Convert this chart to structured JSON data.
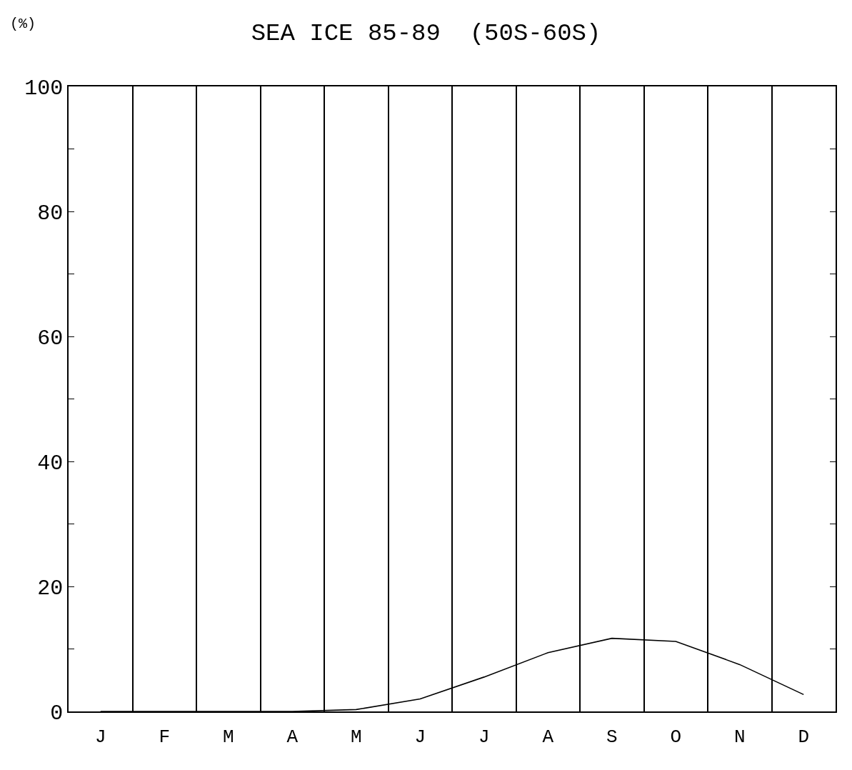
{
  "chart_data": {
    "type": "line",
    "title": "SEA ICE 85-89  (50S-60S)",
    "ylabel": "(%)",
    "categories": [
      "J",
      "F",
      "M",
      "A",
      "M",
      "J",
      "J",
      "A",
      "S",
      "O",
      "N",
      "D"
    ],
    "series": [
      {
        "color": "#000000",
        "values": [
          0,
          0,
          0,
          0,
          0.3,
          2,
          5.5,
          9.4,
          11.7,
          11.2,
          7.5,
          2.7
        ]
      }
    ],
    "ylim": [
      0,
      100
    ],
    "yticks": [
      0,
      {
        "value": 10,
        "label": null
      },
      20,
      {
        "value": 30,
        "label": null
      },
      40,
      {
        "value": 50,
        "label": null
      },
      60,
      {
        "value": 70,
        "label": null
      },
      80,
      {
        "value": 90,
        "label": null
      },
      100
    ],
    "grid": "x",
    "marker": "none",
    "line_style": "solid"
  }
}
